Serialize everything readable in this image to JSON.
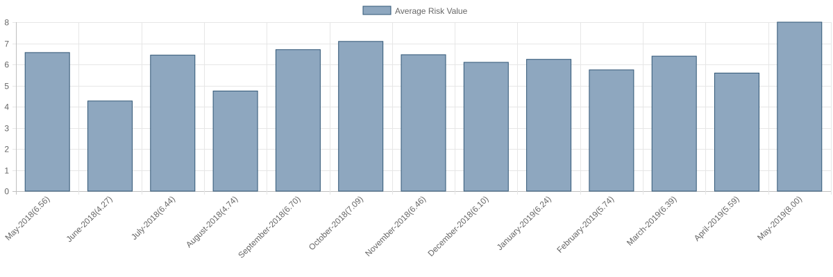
{
  "chart_data": {
    "type": "bar",
    "categories": [
      "May-2018(6.56)",
      "June-2018(4.27)",
      "July-2018(6.44)",
      "August-2018(4.74)",
      "September-2018(6.70)",
      "October-2018(7.09)",
      "November-2018(6.46)",
      "December-2018(6.10)",
      "January-2019(6.24)",
      "February-2019(5.74)",
      "March-2019(6.39)",
      "April-2019(5.59)",
      "May-2019(8.00)"
    ],
    "series": [
      {
        "name": "Average Risk Value",
        "values": [
          6.56,
          4.27,
          6.44,
          4.74,
          6.7,
          7.09,
          6.46,
          6.1,
          6.24,
          5.74,
          6.39,
          5.59,
          8.0
        ]
      }
    ],
    "ylim": [
      0,
      8
    ],
    "yticks": [
      "0",
      "1",
      "2",
      "3",
      "4",
      "5",
      "6",
      "7",
      "8"
    ],
    "grid": true,
    "legend": "top-center",
    "colors": {
      "bar_fill": "#8ea7bf",
      "bar_stroke": "#2f5575",
      "grid": "#e6e6e6",
      "axis": "#bfbfbf",
      "text": "#666666"
    }
  }
}
